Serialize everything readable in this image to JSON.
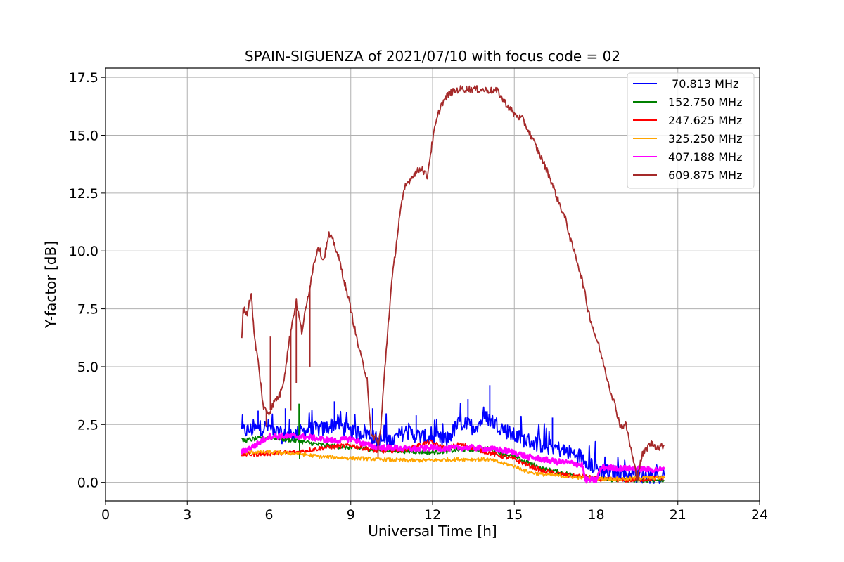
{
  "chart_data": {
    "type": "line",
    "title": "SPAIN-SIGUENZA of 2021/07/10 with focus code = 02",
    "xlabel": "Universal Time [h]",
    "ylabel": "Y-factor [dB]",
    "xlim": [
      0,
      24
    ],
    "ylim": [
      -0.8,
      17.9
    ],
    "xticks": [
      0,
      3,
      6,
      9,
      12,
      15,
      18,
      21,
      24
    ],
    "yticks": [
      0.0,
      2.5,
      5.0,
      7.5,
      10.0,
      12.5,
      15.0,
      17.5
    ],
    "xtick_labels": [
      "0",
      "3",
      "6",
      "9",
      "12",
      "15",
      "18",
      "21",
      "24"
    ],
    "ytick_labels": [
      "0.0",
      "2.5",
      "5.0",
      "7.5",
      "10.0",
      "12.5",
      "15.0",
      "17.5"
    ],
    "grid": true,
    "legend_position": "top-right",
    "series": [
      {
        "name": " 70.813 MHz",
        "color": "#0000ff",
        "x": [
          5.0,
          5.5,
          6.0,
          6.5,
          7.0,
          7.5,
          8.0,
          8.5,
          9.0,
          9.5,
          10.0,
          10.5,
          11.0,
          11.5,
          12.0,
          12.5,
          13.0,
          13.5,
          14.0,
          14.5,
          15.0,
          15.5,
          16.0,
          16.5,
          17.0,
          17.5,
          18.0,
          18.5,
          19.0,
          19.5,
          20.0,
          20.5
        ],
        "y": [
          2.2,
          2.3,
          2.4,
          2.0,
          2.1,
          2.3,
          2.3,
          2.6,
          2.1,
          2.2,
          1.8,
          1.8,
          2.2,
          2.0,
          1.9,
          1.8,
          2.6,
          2.4,
          2.8,
          2.4,
          2.0,
          1.8,
          1.6,
          1.5,
          1.3,
          1.1,
          0.6,
          0.4,
          0.4,
          0.3,
          0.3,
          0.3
        ],
        "spikes": [
          [
            5.6,
            3.1
          ],
          [
            6.6,
            3.2
          ],
          [
            8.4,
            3.5
          ],
          [
            9.8,
            3.2
          ],
          [
            11.4,
            2.9
          ],
          [
            13.3,
            3.6
          ],
          [
            14.1,
            4.2
          ],
          [
            16.4,
            2.8
          ]
        ]
      },
      {
        "name": "152.750 MHz",
        "color": "#008000",
        "x": [
          5.0,
          6.0,
          7.0,
          8.0,
          9.0,
          10.0,
          11.0,
          12.0,
          13.0,
          14.0,
          15.0,
          16.0,
          17.0,
          17.5,
          18.0,
          19.0,
          20.0,
          20.5
        ],
        "y": [
          1.8,
          1.95,
          1.8,
          1.6,
          1.5,
          1.4,
          1.35,
          1.3,
          1.4,
          1.45,
          1.1,
          0.6,
          0.35,
          0.25,
          0.15,
          0.1,
          0.1,
          0.1
        ],
        "spikes": [
          [
            7.1,
            3.4
          ],
          [
            7.12,
            1.0
          ]
        ]
      },
      {
        "name": "247.625 MHz",
        "color": "#ff0000",
        "x": [
          5.0,
          6.0,
          7.0,
          8.0,
          9.0,
          10.0,
          11.0,
          11.9,
          12.5,
          13.0,
          14.0,
          15.0,
          16.0,
          17.0,
          17.6,
          18.0,
          19.0,
          20.0,
          20.5
        ],
        "y": [
          1.2,
          1.25,
          1.3,
          1.5,
          1.6,
          1.35,
          1.4,
          1.75,
          1.45,
          1.65,
          1.3,
          1.0,
          0.5,
          0.3,
          0.25,
          0.15,
          0.1,
          0.15,
          0.2
        ],
        "spikes": []
      },
      {
        "name": "325.250 MHz",
        "color": "#ffa500",
        "x": [
          5.0,
          6.0,
          7.0,
          8.0,
          9.0,
          10.0,
          11.0,
          12.0,
          13.0,
          14.0,
          15.0,
          15.5,
          16.0,
          17.0,
          18.0,
          19.0,
          20.0,
          20.5
        ],
        "y": [
          1.3,
          1.3,
          1.25,
          1.1,
          1.05,
          1.0,
          0.95,
          0.95,
          1.0,
          1.0,
          0.7,
          0.45,
          0.35,
          0.25,
          0.15,
          0.15,
          0.2,
          0.2
        ],
        "spikes": []
      },
      {
        "name": "407.188 MHz",
        "color": "#ff00ff",
        "x": [
          5.0,
          5.5,
          6.0,
          6.5,
          7.0,
          7.5,
          8.0,
          8.5,
          9.0,
          9.5,
          10.0,
          10.5,
          11.0,
          11.5,
          12.0,
          12.5,
          13.0,
          13.5,
          14.0,
          14.5,
          15.0,
          15.5,
          16.0,
          16.5,
          17.0,
          17.5,
          17.6,
          18.0,
          18.2,
          19.0,
          19.5,
          20.0,
          20.5
        ],
        "y": [
          1.3,
          1.6,
          2.0,
          2.0,
          2.0,
          1.95,
          1.85,
          1.8,
          1.9,
          1.65,
          1.5,
          1.5,
          1.45,
          1.45,
          1.5,
          1.45,
          1.5,
          1.5,
          1.45,
          1.4,
          1.3,
          1.1,
          1.0,
          0.9,
          0.85,
          0.75,
          0.1,
          0.1,
          0.65,
          0.6,
          0.6,
          0.55,
          0.55
        ],
        "spikes": []
      },
      {
        "name": "609.875 MHz",
        "color": "#a52a2a",
        "x": [
          5.0,
          5.05,
          5.2,
          5.35,
          5.45,
          5.6,
          5.8,
          6.0,
          6.2,
          6.4,
          6.55,
          6.8,
          7.0,
          7.2,
          7.4,
          7.6,
          7.8,
          8.0,
          8.2,
          8.4,
          8.6,
          8.8,
          9.0,
          9.2,
          9.4,
          9.6,
          9.75,
          9.9,
          10.0,
          10.1,
          10.2,
          10.35,
          10.5,
          10.65,
          10.8,
          11.0,
          11.3,
          11.6,
          11.8,
          11.95,
          12.1,
          12.3,
          12.6,
          13.0,
          13.5,
          14.0,
          14.4,
          14.6,
          14.8,
          15.0,
          15.3,
          15.6,
          15.8,
          16.0,
          16.3,
          16.6,
          16.9,
          17.1,
          17.3,
          17.5,
          17.7,
          17.9,
          18.1,
          18.3,
          18.5,
          18.7,
          18.9,
          19.1,
          19.3,
          19.5,
          19.7,
          20.0,
          20.3,
          20.5
        ],
        "y": [
          6.3,
          7.5,
          7.3,
          8.2,
          6.4,
          5.2,
          3.2,
          3.0,
          3.5,
          3.8,
          4.5,
          6.6,
          7.8,
          6.5,
          7.8,
          9.2,
          10.2,
          9.6,
          10.7,
          10.3,
          9.5,
          8.5,
          7.5,
          6.3,
          5.3,
          4.5,
          1.9,
          2.0,
          1.6,
          2.3,
          4.1,
          6.5,
          8.6,
          10.1,
          11.6,
          12.8,
          13.3,
          13.6,
          13.2,
          14.4,
          15.4,
          16.3,
          16.8,
          17.0,
          17.0,
          16.95,
          16.9,
          16.5,
          16.2,
          15.9,
          15.7,
          15.0,
          14.5,
          14.0,
          13.2,
          12.2,
          11.3,
          10.3,
          9.6,
          8.7,
          7.5,
          6.6,
          5.9,
          5.0,
          4.1,
          3.3,
          2.4,
          2.5,
          1.3,
          0.2,
          1.2,
          1.7,
          1.5,
          1.6
        ],
        "spikes": [
          [
            5.9,
            2.4
          ],
          [
            6.05,
            6.3
          ],
          [
            6.8,
            3.1
          ],
          [
            7.0,
            4.3
          ],
          [
            7.5,
            5.0
          ],
          [
            10.0,
            1.1
          ],
          [
            19.55,
            0.1
          ]
        ]
      }
    ]
  }
}
